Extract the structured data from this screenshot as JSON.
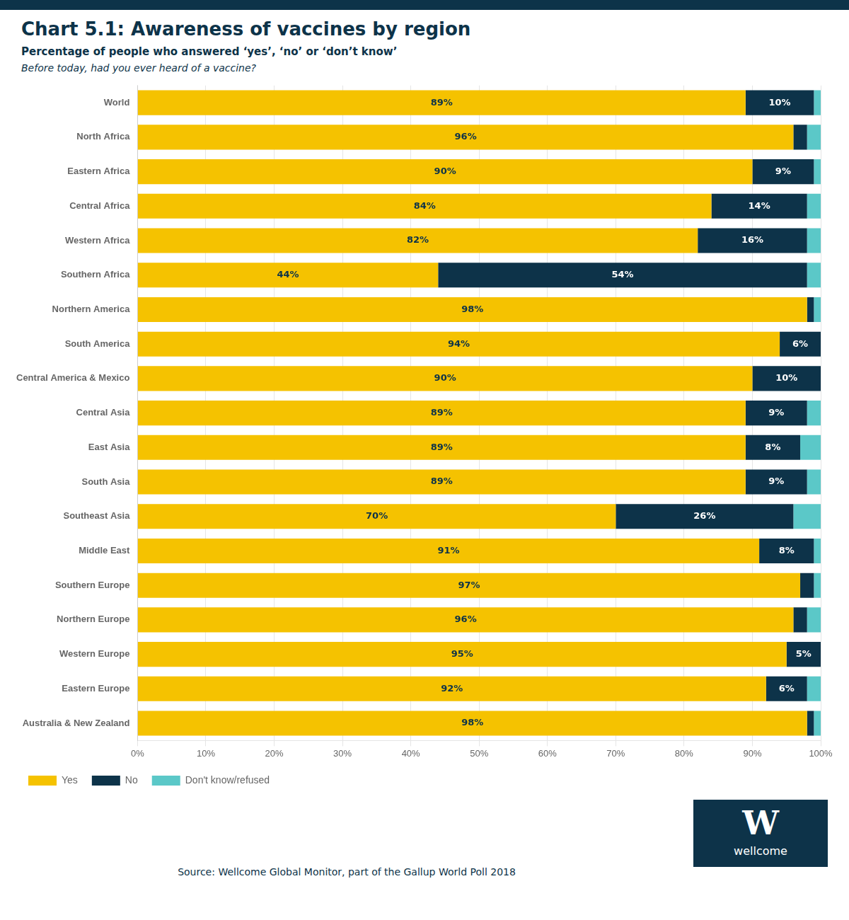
{
  "chart_data": {
    "type": "bar",
    "orientation": "horizontal",
    "stacked": true,
    "title": "Chart 5.1: Awareness of vaccines by region",
    "subtitle": "Percentage of people who answered ‘yes’, ‘no’ or ‘don’t know’",
    "question": "Before today, had you ever heard of a vaccine?",
    "source": "Source: Wellcome Global Monitor, part of the Gallup World Poll 2018",
    "annotations": [
      "W",
      "wellcome"
    ],
    "categories": [
      "World",
      "North Africa",
      "Eastern Africa",
      "Central Africa",
      "Western Africa",
      "Southern Africa",
      "Northern America",
      "South America",
      "Central America & Mexico",
      "Central Asia",
      "East Asia",
      "South Asia",
      "Southeast Asia",
      "Middle East",
      "Southern Europe",
      "Northern Europe",
      "Western Europe",
      "Eastern Europe",
      "Australia & New Zealand"
    ],
    "series": [
      {
        "name": "Yes",
        "color": "#f5c200",
        "values": [
          89,
          96,
          90,
          84,
          82,
          44,
          98,
          94,
          90,
          89,
          89,
          89,
          70,
          91,
          97,
          96,
          95,
          92,
          98
        ],
        "value_labels": [
          "89%",
          "96%",
          "90%",
          "84%",
          "82%",
          "44%",
          "98%",
          "94%",
          "90%",
          "89%",
          "89%",
          "89%",
          "70%",
          "91%",
          "97%",
          "96%",
          "95%",
          "92%",
          "98%"
        ]
      },
      {
        "name": "No",
        "color": "#0d3349",
        "values": [
          10,
          2,
          9,
          14,
          16,
          54,
          1,
          6,
          10,
          9,
          8,
          9,
          26,
          8,
          2,
          2,
          5,
          6,
          1
        ],
        "value_labels": [
          "10%",
          null,
          "9%",
          "14%",
          "16%",
          "54%",
          null,
          "6%",
          "10%",
          "9%",
          "8%",
          "9%",
          "26%",
          "8%",
          null,
          null,
          "5%",
          "6%",
          null
        ]
      },
      {
        "name": "Don't know/refused",
        "color": "#5bc8c8",
        "values": [
          1,
          2,
          1,
          2,
          2,
          2,
          1,
          0,
          0,
          2,
          3,
          2,
          4,
          1,
          1,
          2,
          0,
          2,
          1
        ]
      }
    ],
    "xlim": [
      0,
      100
    ],
    "xticks": [
      {
        "value": 0,
        "label": "0%"
      },
      {
        "value": 10,
        "label": "10%"
      },
      {
        "value": 20,
        "label": "20%"
      },
      {
        "value": 30,
        "label": "30%"
      },
      {
        "value": 40,
        "label": "40%"
      },
      {
        "value": 50,
        "label": "50%"
      },
      {
        "value": 60,
        "label": "60%"
      },
      {
        "value": 70,
        "label": "70%"
      },
      {
        "value": 80,
        "label": "80%"
      },
      {
        "value": 90,
        "label": "90%"
      },
      {
        "value": 100,
        "label": "100%"
      }
    ],
    "grid": true,
    "data_labels": true,
    "legend": "bottom"
  }
}
